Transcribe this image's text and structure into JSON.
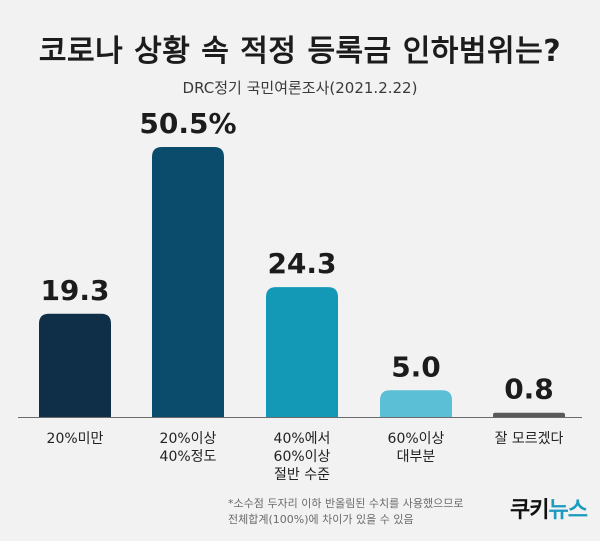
{
  "header": {
    "title": "코로나 상황 속 적정 등록금 인하범위는?",
    "subtitle": "DRC정기 국민여론조사(2021.2.22)"
  },
  "chart_data": {
    "type": "bar",
    "categories": [
      [
        "20%미만"
      ],
      [
        "20%이상",
        "40%정도"
      ],
      [
        "40%에서",
        "60%이상",
        "절반 수준"
      ],
      [
        "60%이상",
        "대부분"
      ],
      [
        "잘 모르겠다"
      ]
    ],
    "values": [
      19.3,
      50.5,
      24.3,
      5.0,
      0.8
    ],
    "value_labels": [
      "19.3",
      "50.5%",
      "24.3",
      "5.0",
      "0.8"
    ],
    "colors": [
      "#0f2f48",
      "#0b4b6c",
      "#1399b6",
      "#5bbfd6",
      "#595959"
    ],
    "title": "코로나 상황 속 적정 등록금 인하범위는?",
    "xlabel": "",
    "ylabel": "",
    "ylim": [
      0,
      50.5
    ],
    "grid": false,
    "legend": "none"
  },
  "footnote": {
    "line1": "*소수점 두자리 이하 반올림된 수치를 사용했으므로",
    "line2": "전체합계(100%)에 차이가 있을 수 있음"
  },
  "brand": {
    "logo_text_1": "쿠키",
    "logo_text_2": "뉴스"
  }
}
